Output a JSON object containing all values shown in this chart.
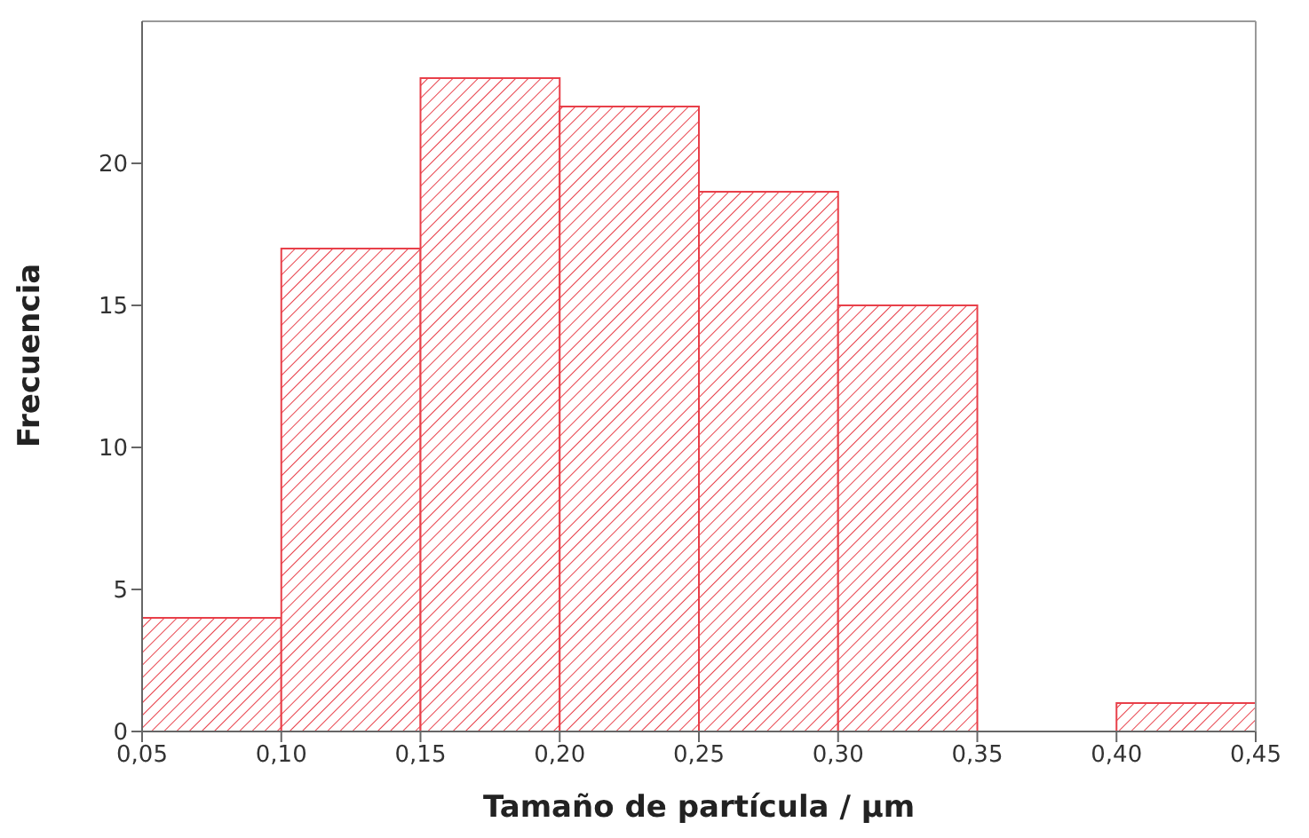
{
  "chart_data": {
    "type": "histogram",
    "xlabel": "Tamaño de partícula / µm",
    "ylabel": "Frecuencia",
    "bins": [
      0.05,
      0.1,
      0.15,
      0.2,
      0.25,
      0.3,
      0.35,
      0.4,
      0.45
    ],
    "values": [
      4,
      17,
      23,
      22,
      19,
      15,
      0,
      1
    ],
    "color": "#e8404a",
    "xlim": [
      0.05,
      0.45
    ],
    "xticks": [
      {
        "value": 0.05,
        "label": "0,05"
      },
      {
        "value": 0.1,
        "label": "0,10"
      },
      {
        "value": 0.15,
        "label": "0,15"
      },
      {
        "value": 0.2,
        "label": "0,20"
      },
      {
        "value": 0.25,
        "label": "0,25"
      },
      {
        "value": 0.3,
        "label": "0,30"
      },
      {
        "value": 0.35,
        "label": "0,35"
      },
      {
        "value": 0.4,
        "label": "0,40"
      },
      {
        "value": 0.45,
        "label": "0,45"
      }
    ],
    "ylim": [
      0,
      25
    ],
    "yticks": [
      0,
      5,
      10,
      15,
      20
    ],
    "grid": false,
    "legend": false
  }
}
